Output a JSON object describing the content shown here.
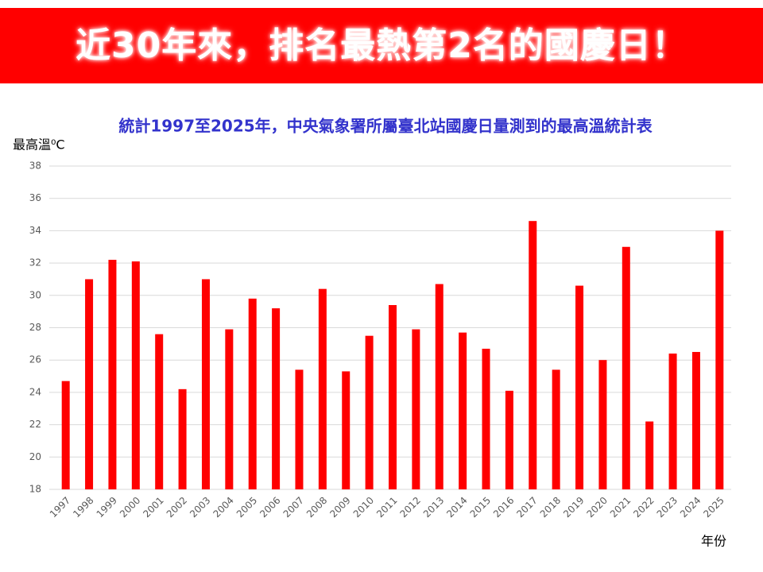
{
  "header": {
    "title": "近30年來，排名最熱第2名的國慶日！"
  },
  "chart_data": {
    "type": "bar",
    "title": "統計1997至2025年，中央氣象署所屬臺北站國慶日量測到的最高溫統計表",
    "y_label": "最高溫⁰C",
    "x_label": "年份",
    "categories": [
      "1997",
      "1998",
      "1999",
      "2000",
      "2001",
      "2002",
      "2003",
      "2004",
      "2005",
      "2006",
      "2007",
      "2008",
      "2009",
      "2010",
      "2011",
      "2012",
      "2013",
      "2014",
      "2015",
      "2016",
      "2017",
      "2018",
      "2019",
      "2020",
      "2021",
      "2022",
      "2023",
      "2024",
      "2025"
    ],
    "values": [
      24.7,
      31.0,
      32.2,
      32.1,
      27.6,
      24.2,
      31.0,
      27.9,
      29.8,
      29.2,
      25.4,
      30.4,
      25.3,
      27.5,
      29.4,
      27.9,
      30.7,
      27.7,
      26.7,
      24.1,
      34.6,
      25.4,
      30.6,
      26.0,
      33.0,
      22.2,
      26.4,
      26.5,
      34.0
    ],
    "color": "#ff0000",
    "ylim": [
      18,
      38
    ],
    "yticks": [
      18,
      20,
      22,
      24,
      26,
      28,
      30,
      32,
      34,
      36,
      38
    ],
    "grid": true
  }
}
